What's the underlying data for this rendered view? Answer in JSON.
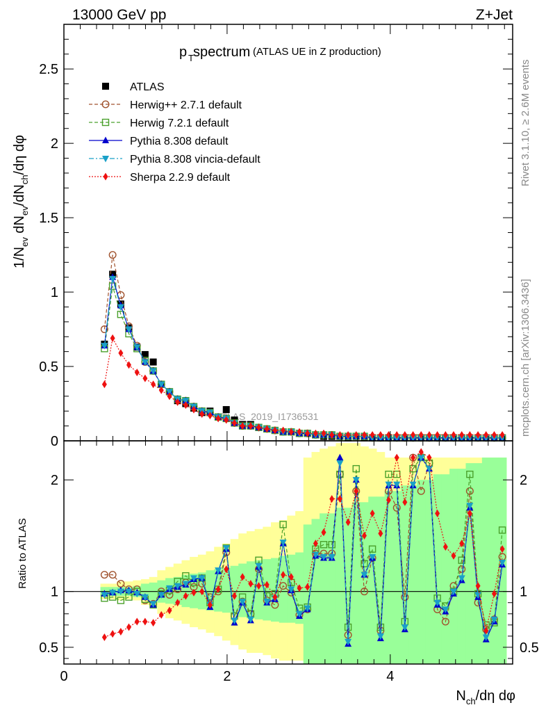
{
  "header": {
    "left": "13000 GeV pp",
    "right": "Z+Jet"
  },
  "plot_title": {
    "main_base": "p",
    "main_sub": "T",
    "main_rest": " spectrum",
    "paren": "(ATLAS UE in Z production)"
  },
  "side_labels": {
    "rivet": "Rivet 3.1.10, ≥ 2.6M events",
    "mcplots": "mcplots.cern.ch [arXiv:1306.3436]"
  },
  "watermark": "ATLAS_2019_I1736531",
  "chart_data": [
    {
      "type": "scatter",
      "panel": "main",
      "ylabel": "1/N_ev dN_ev/dN_ch/dη dφ",
      "ylim": [
        0,
        2.8
      ],
      "xlim": [
        0,
        5.5
      ],
      "yticks": [
        0,
        0.5,
        1,
        1.5,
        2,
        2.5
      ],
      "ytick_labels": [
        "0",
        "0.5",
        "1",
        "1.5",
        "2",
        "2.5"
      ],
      "legend_position": "top-left",
      "x": [
        0.497,
        0.597,
        0.697,
        0.796,
        0.896,
        0.995,
        1.095,
        1.194,
        1.294,
        1.393,
        1.493,
        1.592,
        1.692,
        1.791,
        1.891,
        1.99,
        2.09,
        2.189,
        2.289,
        2.388,
        2.488,
        2.587,
        2.687,
        2.786,
        2.886,
        2.985,
        3.085,
        3.184,
        3.284,
        3.383,
        3.483,
        3.582,
        3.682,
        3.781,
        3.881,
        3.98,
        4.08,
        4.179,
        4.279,
        4.378,
        4.478,
        4.577,
        4.677,
        4.776,
        4.876,
        4.975,
        5.075,
        5.174,
        5.274,
        5.373
      ],
      "series": [
        {
          "name": "ATLAS",
          "color": "#000000",
          "marker": "square-filled",
          "values": [
            0.65,
            1.12,
            0.92,
            0.76,
            0.63,
            0.58,
            0.53,
            0.38,
            0.33,
            0.27,
            0.25,
            0.22,
            0.19,
            0.2,
            0.16,
            0.21,
            0.14,
            0.11,
            0.11,
            0.09,
            0.08,
            0.07,
            0.06,
            0.06,
            0.05,
            0.05,
            0.04,
            0.03,
            0.03,
            0.03,
            0.02,
            0.03,
            0.02,
            0.02,
            0.02,
            0.02,
            0.02,
            0.02,
            0.02,
            0.02,
            0.02,
            0.02,
            0.02,
            0.02,
            0.02,
            0.02,
            0.02,
            0.02,
            0.02,
            0.02
          ]
        },
        {
          "name": "Herwig++ 2.7.1 default",
          "color": "#a0522d",
          "marker": "circle-open",
          "dash": "5,3",
          "values": [
            0.75,
            1.25,
            0.98,
            0.77,
            0.64,
            0.53,
            0.47,
            0.38,
            0.33,
            0.28,
            0.27,
            0.23,
            0.2,
            0.19,
            0.16,
            0.15,
            0.12,
            0.1,
            0.1,
            0.09,
            0.08,
            0.07,
            0.06,
            0.06,
            0.05,
            0.05,
            0.04,
            0.04,
            0.04,
            0.03,
            0.03,
            0.03,
            0.03,
            0.02,
            0.02,
            0.02,
            0.02,
            0.02,
            0.02,
            0.02,
            0.02,
            0.02,
            0.02,
            0.02,
            0.02,
            0.02,
            0.02,
            0.02,
            0.02,
            0.02
          ]
        },
        {
          "name": "Herwig 7.2.1 default",
          "color": "#4aa02c",
          "marker": "square-open",
          "dash": "5,3",
          "values": [
            0.62,
            1.04,
            0.85,
            0.72,
            0.62,
            0.54,
            0.47,
            0.38,
            0.33,
            0.28,
            0.27,
            0.23,
            0.2,
            0.19,
            0.16,
            0.15,
            0.12,
            0.1,
            0.1,
            0.09,
            0.08,
            0.07,
            0.06,
            0.06,
            0.05,
            0.05,
            0.04,
            0.04,
            0.04,
            0.03,
            0.03,
            0.03,
            0.03,
            0.02,
            0.02,
            0.02,
            0.02,
            0.02,
            0.02,
            0.02,
            0.02,
            0.02,
            0.02,
            0.02,
            0.02,
            0.02,
            0.02,
            0.02,
            0.02,
            0.02
          ]
        },
        {
          "name": "Pythia 8.308 default",
          "color": "#0000cc",
          "marker": "triangle-up",
          "dash": "",
          "values": [
            0.64,
            1.1,
            0.91,
            0.75,
            0.63,
            0.53,
            0.47,
            0.38,
            0.33,
            0.28,
            0.27,
            0.23,
            0.2,
            0.19,
            0.16,
            0.15,
            0.12,
            0.1,
            0.1,
            0.09,
            0.08,
            0.07,
            0.06,
            0.06,
            0.05,
            0.05,
            0.04,
            0.04,
            0.04,
            0.03,
            0.03,
            0.03,
            0.03,
            0.02,
            0.02,
            0.02,
            0.02,
            0.02,
            0.02,
            0.02,
            0.02,
            0.02,
            0.02,
            0.02,
            0.02,
            0.02,
            0.02,
            0.02,
            0.02,
            0.02
          ]
        },
        {
          "name": "Pythia 8.308 vincia-default",
          "color": "#1aa0c8",
          "marker": "triangle-down",
          "dash": "7,3,2,3",
          "values": [
            0.64,
            1.09,
            0.9,
            0.75,
            0.63,
            0.53,
            0.47,
            0.38,
            0.33,
            0.28,
            0.27,
            0.23,
            0.2,
            0.19,
            0.16,
            0.15,
            0.12,
            0.1,
            0.1,
            0.09,
            0.08,
            0.07,
            0.06,
            0.06,
            0.05,
            0.05,
            0.04,
            0.04,
            0.04,
            0.03,
            0.03,
            0.03,
            0.03,
            0.02,
            0.02,
            0.02,
            0.02,
            0.02,
            0.02,
            0.02,
            0.02,
            0.02,
            0.02,
            0.02,
            0.02,
            0.02,
            0.02,
            0.02,
            0.02,
            0.02
          ]
        },
        {
          "name": "Sherpa 2.2.9 default",
          "color": "#ee1111",
          "marker": "diamond",
          "dash": "2,2",
          "values": [
            0.38,
            0.69,
            0.59,
            0.51,
            0.46,
            0.42,
            0.38,
            0.34,
            0.3,
            0.26,
            0.24,
            0.21,
            0.18,
            0.17,
            0.15,
            0.14,
            0.12,
            0.1,
            0.1,
            0.09,
            0.08,
            0.07,
            0.07,
            0.06,
            0.06,
            0.05,
            0.05,
            0.05,
            0.04,
            0.04,
            0.04,
            0.04,
            0.04,
            0.04,
            0.04,
            0.04,
            0.04,
            0.04,
            0.04,
            0.04,
            0.04,
            0.04,
            0.04,
            0.04,
            0.04,
            0.04,
            0.04,
            0.04,
            0.04,
            0.04
          ]
        }
      ]
    },
    {
      "type": "scatter",
      "panel": "ratio",
      "ylabel": "Ratio to ATLAS",
      "xlabel": "N_ch/dη dφ",
      "ylim": [
        0.35,
        2.35
      ],
      "xlim": [
        0,
        5.5
      ],
      "yticks": [
        0.5,
        1,
        2
      ],
      "ytick_labels": [
        "0.5",
        "1",
        "2"
      ],
      "xticks": [
        0,
        2,
        4
      ],
      "xtick_labels": [
        "0",
        "2",
        "4"
      ],
      "x": [
        0.497,
        0.597,
        0.697,
        0.796,
        0.896,
        0.995,
        1.095,
        1.194,
        1.294,
        1.393,
        1.493,
        1.592,
        1.692,
        1.791,
        1.891,
        1.99,
        2.09,
        2.189,
        2.289,
        2.388,
        2.488,
        2.587,
        2.687,
        2.786,
        2.886,
        2.985,
        3.085,
        3.184,
        3.284,
        3.383,
        3.483,
        3.582,
        3.682,
        3.781,
        3.881,
        3.98,
        4.08,
        4.179,
        4.279,
        4.378,
        4.478,
        4.577,
        4.677,
        4.776,
        4.876,
        4.975,
        5.075,
        5.174,
        5.274,
        5.373
      ],
      "bands": {
        "yellow": {
          "color": "#ffff99",
          "low": [
            0.93,
            0.93,
            0.92,
            0.93,
            0.92,
            0.88,
            0.86,
            0.8,
            0.76,
            0.74,
            0.71,
            0.68,
            0.66,
            0.63,
            0.6,
            0.56,
            0.52,
            0.48,
            0.45,
            0.45,
            0.43,
            0.4,
            0.38,
            0.38,
            0.38,
            0.35,
            0.35,
            0.35,
            0.35,
            0.35,
            0.35,
            0.35,
            0.35,
            0.35,
            0.35,
            0.35,
            0.35,
            0.35,
            0.35,
            0.35,
            0.35,
            0.35,
            0.35,
            0.35,
            0.35,
            0.35,
            0.35,
            0.35,
            0.35,
            0.35
          ],
          "high": [
            1.07,
            1.07,
            1.09,
            1.09,
            1.1,
            1.11,
            1.13,
            1.19,
            1.22,
            1.25,
            1.28,
            1.31,
            1.33,
            1.36,
            1.4,
            1.43,
            1.47,
            1.52,
            1.54,
            1.56,
            1.58,
            1.62,
            1.64,
            1.68,
            1.72,
            2.2,
            2.25,
            2.28,
            2.3,
            2.33,
            2.33,
            2.33,
            2.3,
            2.28,
            2.25,
            2.2,
            2.2,
            2.2,
            2.2,
            2.2,
            2.2,
            2.2,
            2.2,
            2.2,
            2.2,
            2.2,
            2.2,
            2.2,
            2.2,
            2.2
          ]
        },
        "green": {
          "color": "#99ff99",
          "low": [
            0.96,
            0.96,
            0.96,
            0.96,
            0.95,
            0.93,
            0.92,
            0.9,
            0.89,
            0.88,
            0.86,
            0.85,
            0.84,
            0.83,
            0.82,
            0.81,
            0.79,
            0.77,
            0.76,
            0.75,
            0.74,
            0.73,
            0.72,
            0.72,
            0.71,
            0.35,
            0.35,
            0.35,
            0.35,
            0.35,
            0.35,
            0.35,
            0.35,
            0.35,
            0.35,
            0.35,
            0.35,
            0.35,
            0.35,
            0.35,
            0.35,
            0.35,
            0.35,
            0.35,
            0.35,
            0.35,
            0.35,
            0.35,
            0.35,
            0.35
          ],
          "high": [
            1.04,
            1.04,
            1.04,
            1.04,
            1.05,
            1.07,
            1.08,
            1.1,
            1.12,
            1.13,
            1.15,
            1.16,
            1.17,
            1.19,
            1.2,
            1.21,
            1.23,
            1.25,
            1.27,
            1.28,
            1.29,
            1.3,
            1.32,
            1.33,
            1.35,
            1.6,
            1.65,
            1.7,
            1.7,
            1.75,
            1.75,
            1.8,
            1.8,
            1.85,
            1.85,
            1.9,
            1.9,
            1.95,
            1.95,
            2.0,
            2.0,
            2.05,
            2.05,
            2.1,
            2.1,
            2.15,
            2.15,
            2.2,
            2.2,
            2.2
          ]
        }
      },
      "series": [
        {
          "name": "Herwig++ 2.7.1 default",
          "color": "#a0522d",
          "marker": "circle-open",
          "dash": "5,3",
          "values": [
            1.15,
            1.15,
            1.07,
            1.02,
            1.02,
            0.92,
            0.89,
            1.0,
            0.97,
            1.02,
            1.08,
            1.04,
            1.07,
            0.95,
            1.0,
            1.35,
            0.78,
            0.91,
            0.8,
            1.2,
            0.92,
            0.88,
            1.05,
            0.99,
            0.79,
            0.84,
            1.34,
            1.34,
            1.34,
            2.05,
            0.61,
            1.9,
            1.0,
            1.3,
            0.65,
            1.9,
            1.75,
            0.95,
            2.2,
            1.9,
            2.15,
            0.84,
            0.73,
            1.05,
            1.2,
            1.9,
            0.9,
            0.66,
            0.75,
            1.31
          ]
        },
        {
          "name": "Herwig 7.2.1 default",
          "color": "#4aa02c",
          "marker": "square-open",
          "dash": "5,3",
          "values": [
            0.94,
            0.95,
            0.92,
            0.95,
            1.0,
            0.93,
            0.88,
            0.98,
            1.01,
            1.09,
            1.14,
            1.08,
            1.12,
            0.9,
            1.02,
            1.39,
            0.78,
            0.95,
            0.8,
            1.28,
            0.96,
            0.98,
            1.6,
            1.08,
            0.85,
            0.86,
            1.38,
            1.42,
            1.42,
            2.05,
            0.68,
            2.1,
            1.25,
            1.38,
            0.68,
            2.05,
            2.05,
            0.73,
            2.1,
            2.2,
            2.15,
            0.94,
            0.87,
            1.0,
            1.28,
            2.05,
            0.98,
            0.7,
            0.72,
            1.55
          ]
        },
        {
          "name": "Pythia 8.308 default",
          "color": "#0000cc",
          "marker": "triangle-up",
          "dash": "",
          "values": [
            0.98,
            0.99,
            1.01,
            1.01,
            0.99,
            0.95,
            0.88,
            0.97,
            1.02,
            1.04,
            1.06,
            1.11,
            1.12,
            0.86,
            1.18,
            1.38,
            0.72,
            0.9,
            0.74,
            1.22,
            0.9,
            0.93,
            1.43,
            1.01,
            0.78,
            0.84,
            1.32,
            1.3,
            1.3,
            2.2,
            0.53,
            2.0,
            1.15,
            1.3,
            0.58,
            1.95,
            1.95,
            0.66,
            1.95,
            2.2,
            2.1,
            0.88,
            0.82,
            0.98,
            1.1,
            1.75,
            0.95,
            0.57,
            0.73,
            1.24
          ]
        },
        {
          "name": "Pythia 8.308 vincia-default",
          "color": "#1aa0c8",
          "marker": "triangle-down",
          "dash": "7,3,2,3",
          "values": [
            0.97,
            0.99,
            1.0,
            1.0,
            0.98,
            0.95,
            0.89,
            0.97,
            1.03,
            1.05,
            1.07,
            1.12,
            1.12,
            0.88,
            1.19,
            1.39,
            0.74,
            0.91,
            0.75,
            1.23,
            0.91,
            0.94,
            1.44,
            1.02,
            0.8,
            0.85,
            1.33,
            1.31,
            1.31,
            2.15,
            0.55,
            2.0,
            1.15,
            1.31,
            0.6,
            1.96,
            1.96,
            0.68,
            1.96,
            2.2,
            2.1,
            0.9,
            0.84,
            1.0,
            1.12,
            1.77,
            0.97,
            0.59,
            0.75,
            1.26
          ]
        },
        {
          "name": "Sherpa 2.2.9 default",
          "color": "#ee1111",
          "marker": "diamond",
          "dash": "2,2",
          "values": [
            0.59,
            0.62,
            0.64,
            0.68,
            0.73,
            0.73,
            0.72,
            0.79,
            0.83,
            0.9,
            0.96,
            0.99,
            1.0,
            0.88,
            1.02,
            1.2,
            0.96,
            1.13,
            1.07,
            1.05,
            1.06,
            0.95,
            1.15,
            1.13,
            1.03,
            1.04,
            1.43,
            1.53,
            1.83,
            1.83,
            1.62,
            1.9,
            1.5,
            1.7,
            1.52,
            1.82,
            2.2,
            1.8,
            2.2,
            2.25,
            2.2,
            1.7,
            1.4,
            1.32,
            1.43,
            1.7,
            1.05,
            0.65,
            0.98,
            1.38
          ]
        }
      ]
    }
  ]
}
